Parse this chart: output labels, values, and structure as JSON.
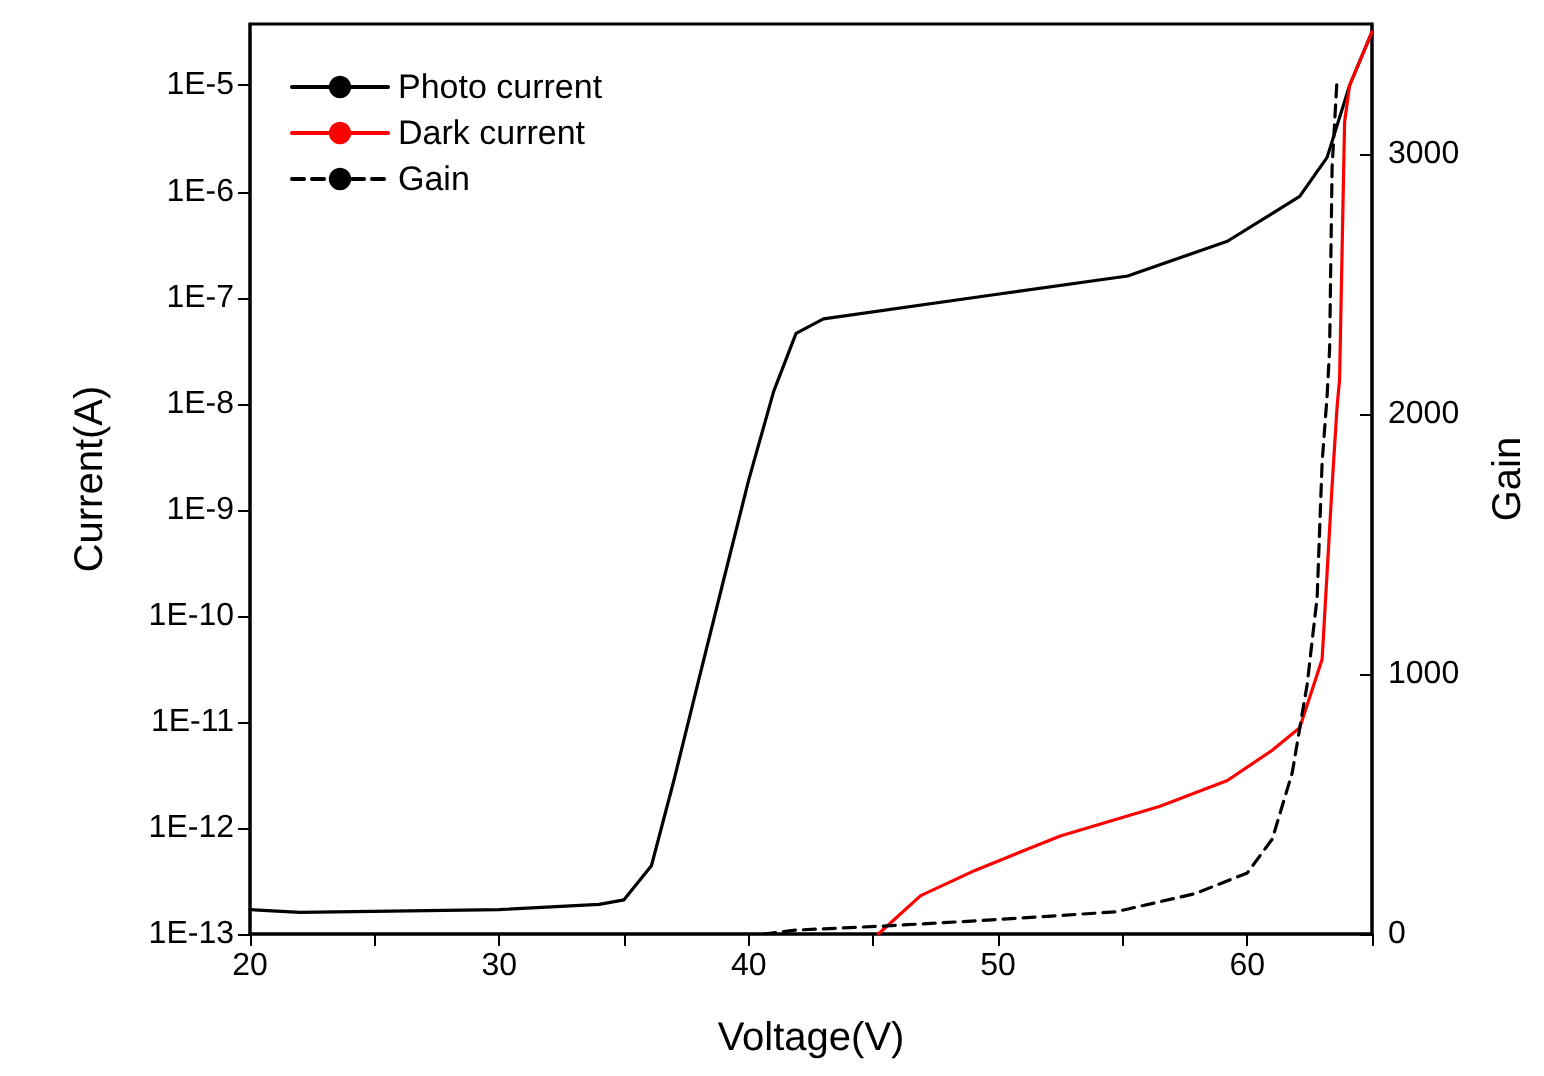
{
  "chart_data": {
    "type": "line",
    "xlabel": "Voltage(V)",
    "ylabel": "Current(A)",
    "y2label": "Gain",
    "log": "y",
    "grid": false,
    "legend": "top left",
    "marker": "none",
    "xlim": [
      20,
      65
    ],
    "xticks": [
      20,
      {
        "value": 25,
        "label": null
      },
      30,
      {
        "value": 35,
        "label": null
      },
      40,
      {
        "value": 45,
        "label": null
      },
      50,
      {
        "value": 55,
        "label": null
      },
      60,
      {
        "value": 65,
        "label": null
      }
    ],
    "ylim": [
      1e-13,
      3.8e-05
    ],
    "yticks": [
      {
        "value": 1e-13,
        "label": "1E-13"
      },
      {
        "value": 1e-12,
        "label": "1E-12"
      },
      {
        "value": 1e-11,
        "label": "1E-11"
      },
      {
        "value": 1e-10,
        "label": "1E-10"
      },
      {
        "value": 1e-09,
        "label": "1E-9"
      },
      {
        "value": 1e-08,
        "label": "1E-8"
      },
      {
        "value": 1e-07,
        "label": "1E-7"
      },
      {
        "value": 1e-06,
        "label": "1E-6"
      },
      {
        "value": 1e-05,
        "label": "1E-5"
      }
    ],
    "y2lim": [
      0,
      3500
    ],
    "y2ticks": [
      0,
      1000,
      2000,
      3000
    ],
    "series": [
      {
        "name": "Photo current",
        "color": "#000000",
        "line_style": "solid",
        "x": [
          20,
          22,
          30,
          34,
          35,
          36.1,
          37,
          38,
          39,
          40,
          41,
          41.9,
          43,
          49.9,
          55.2,
          59.2,
          62.1,
          63.2,
          64.1,
          65
        ],
        "values": [
          1.7e-13,
          1.6e-13,
          1.7e-13,
          1.9e-13,
          2.1e-13,
          4.4e-13,
          2.8e-12,
          2.5e-11,
          2.2e-10,
          1.9e-09,
          1.3e-08,
          4.6e-08,
          6.3e-08,
          1.07e-07,
          1.6e-07,
          3.4e-07,
          9e-07,
          2.1e-06,
          1e-05,
          3.2e-05
        ]
      },
      {
        "name": "Dark current",
        "color": "#ff0000",
        "line_style": "solid",
        "x": [
          45.2,
          46.9,
          49.1,
          52.5,
          56.5,
          59.2,
          61,
          62.1,
          63,
          63.4,
          63.6,
          63.7,
          63.9,
          64.1,
          65
        ],
        "values": [
          1e-13,
          2.3e-13,
          4e-13,
          8.4e-13,
          1.6e-12,
          2.8e-12,
          5.4e-12,
          8.8e-12,
          3.9e-11,
          1.7e-09,
          9.4e-09,
          1.7e-08,
          4.5e-06,
          1e-05,
          3.2e-05
        ]
      },
      {
        "name": "Gain",
        "color": "#000000",
        "line_style": "dashed",
        "axis": "y2",
        "x": [
          40.6,
          41.9,
          45.3,
          49.9,
          54.7,
          57.9,
          60,
          61,
          61.8,
          62.4,
          62.8,
          63,
          63.2,
          63.3,
          63.4,
          63.6
        ],
        "values": [
          0,
          15,
          30,
          55,
          85,
          155,
          235,
          365,
          620,
          960,
          1295,
          1815,
          2070,
          2250,
          2950,
          3290
        ]
      }
    ]
  }
}
